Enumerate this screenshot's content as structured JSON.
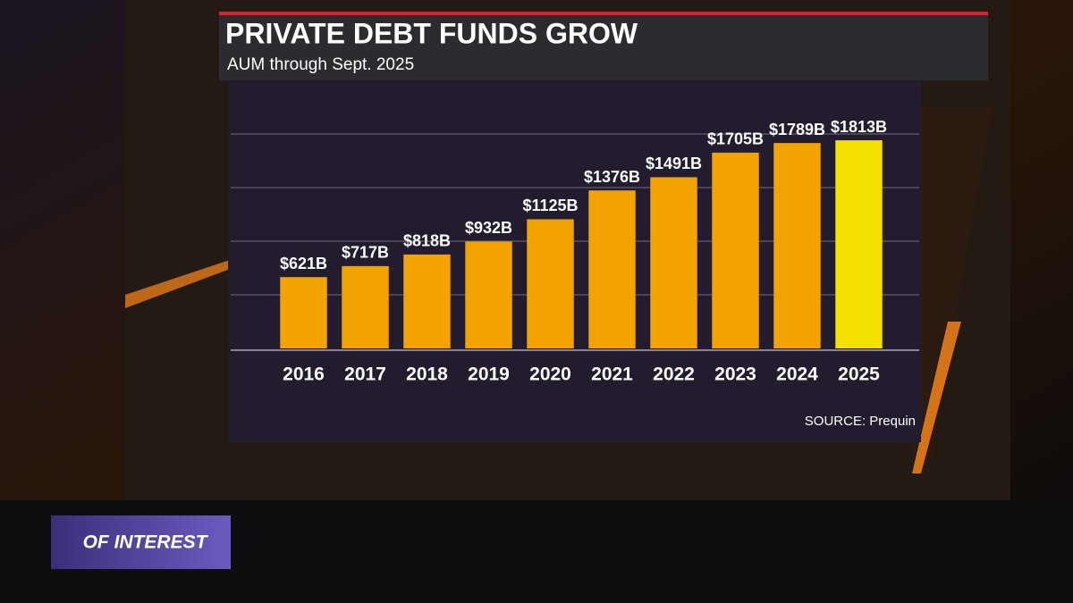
{
  "chart_data": {
    "type": "bar",
    "title": "PRIVATE DEBT FUNDS GROW",
    "subtitle": "AUM through Sept. 2025",
    "source": "SOURCE: Prequin",
    "categories": [
      "2016",
      "2017",
      "2018",
      "2019",
      "2020",
      "2021",
      "2022",
      "2023",
      "2024",
      "2025"
    ],
    "values": [
      621,
      717,
      818,
      932,
      1125,
      1376,
      1491,
      1705,
      1789,
      1813
    ],
    "value_labels": [
      "$621B",
      "$717B",
      "$818B",
      "$932B",
      "$1125B",
      "$1376B",
      "$1491B",
      "$1705B",
      "$1789B",
      "$1813B"
    ],
    "colors": [
      "#f2a300",
      "#f2a300",
      "#f2a300",
      "#f2a300",
      "#f2a300",
      "#f2a300",
      "#f2a300",
      "#f2a300",
      "#f2a300",
      "#f3e000"
    ],
    "ylim": [
      0,
      2000
    ]
  },
  "overlay": {
    "label": "OF INTEREST"
  }
}
